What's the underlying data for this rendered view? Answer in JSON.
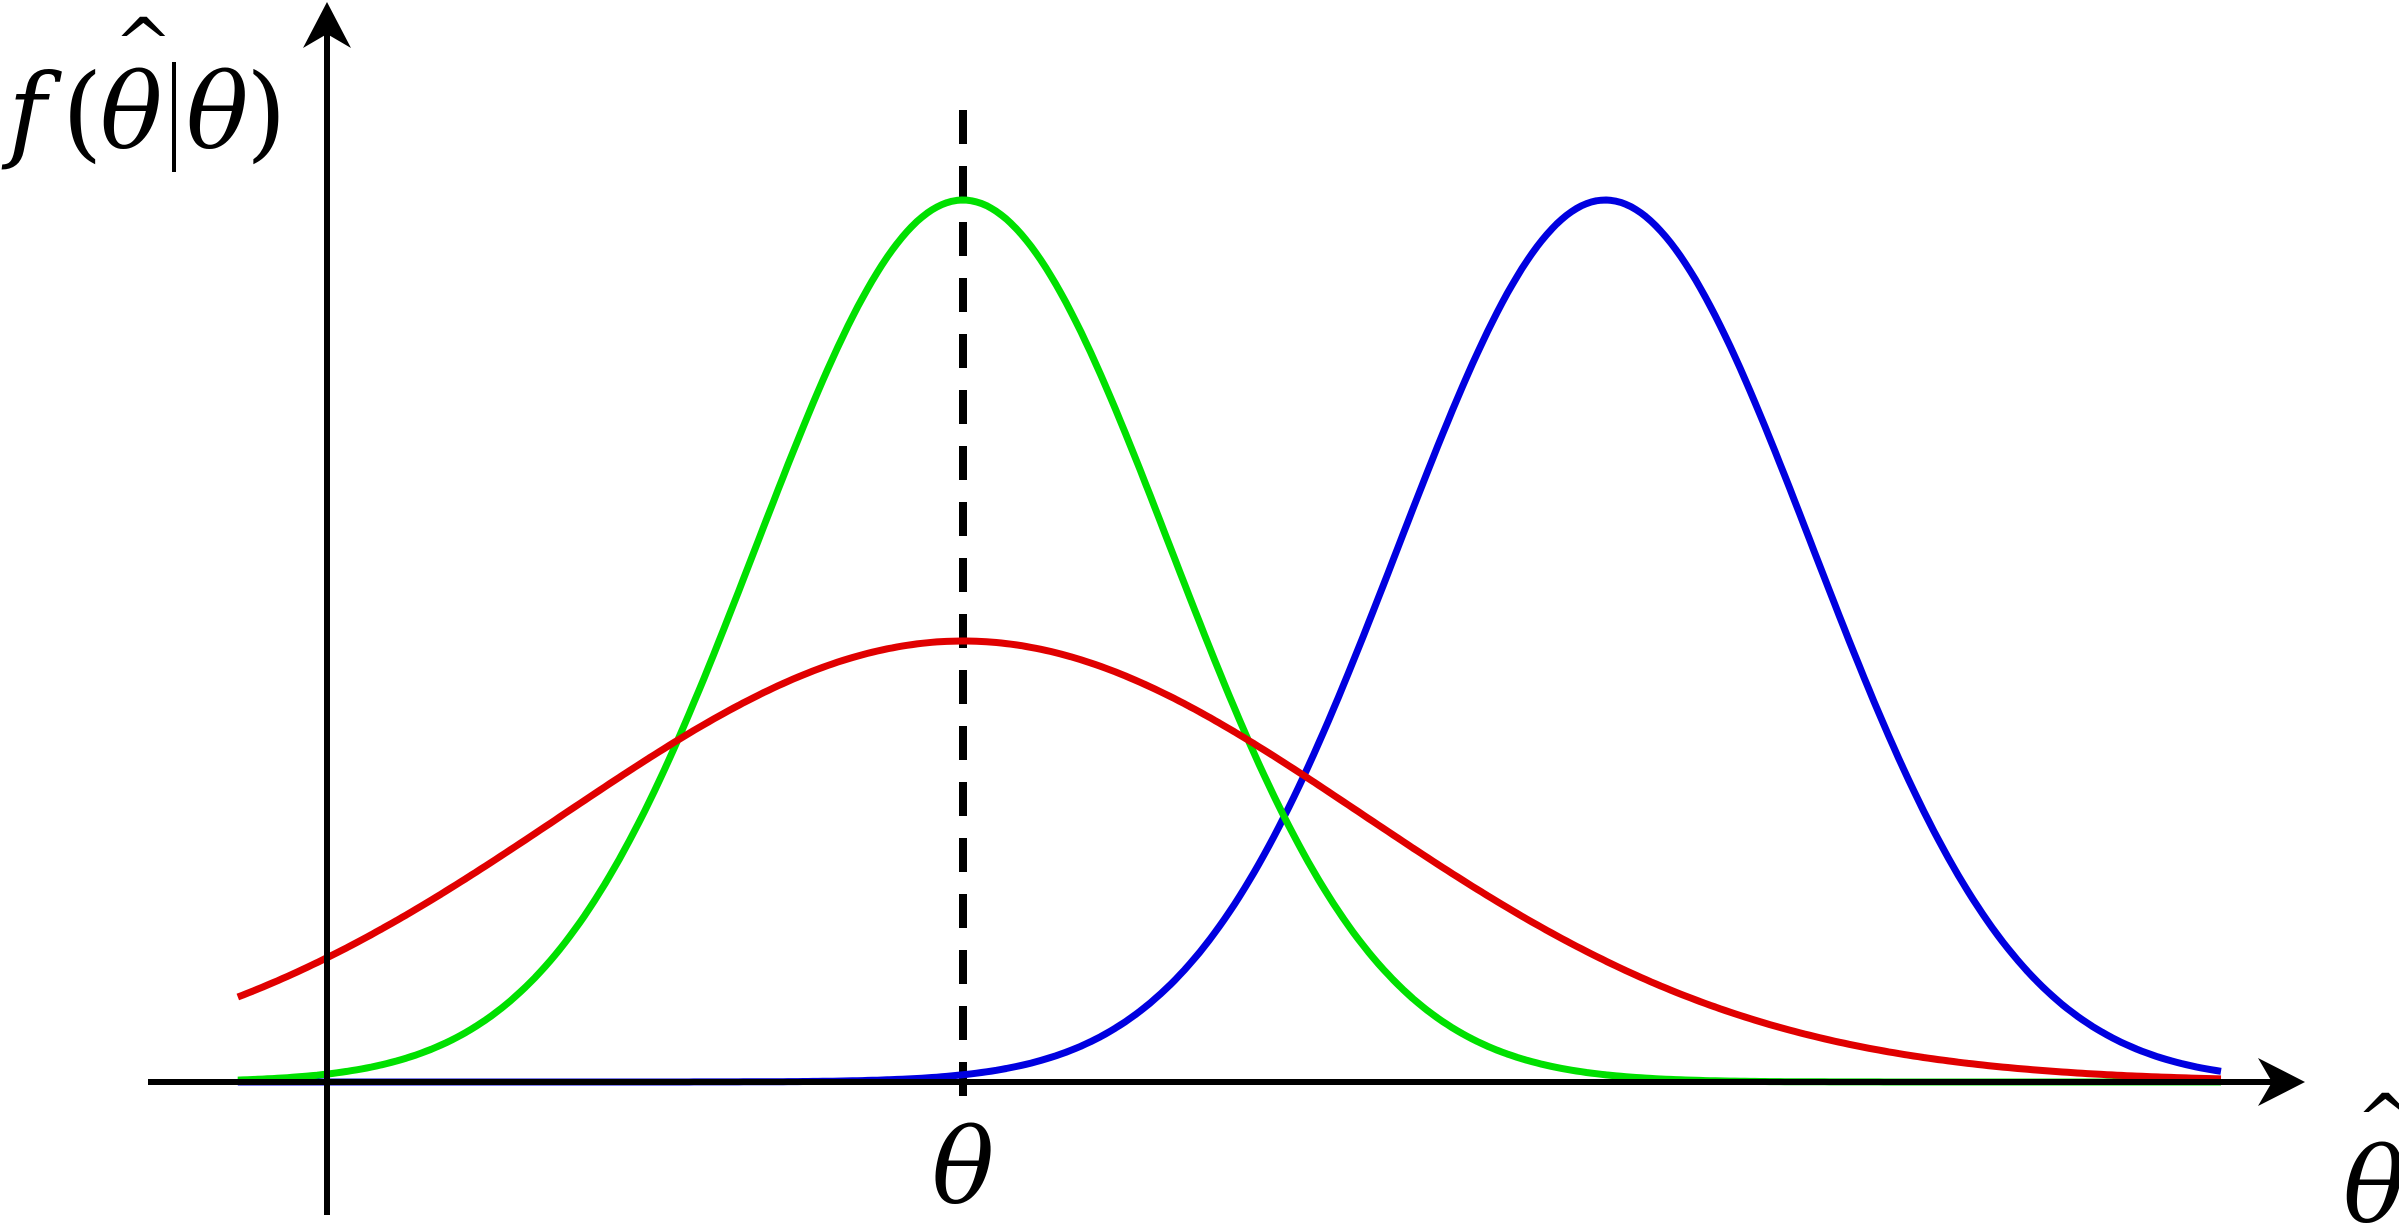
{
  "chart_data": {
    "type": "line",
    "title": "",
    "ylabel": "f(θ̂|θ)",
    "xlabel": "θ̂",
    "xticks": [
      {
        "value": 0,
        "label": "θ"
      }
    ],
    "xlim": [
      -3.0,
      5.1
    ],
    "ylim": [
      0,
      1.1
    ],
    "reference_line": {
      "x": 0,
      "style": "dashed"
    },
    "grid": false,
    "legend": "none",
    "series": [
      {
        "color": "#00e000",
        "distribution": "normal",
        "mean": 0.0,
        "sd": 0.7,
        "peak": 1.0,
        "x_range": [
          -2.45,
          4.25
        ]
      },
      {
        "color": "#0000e0",
        "distribution": "normal",
        "mean": 2.17,
        "sd": 0.7,
        "peak": 1.0,
        "x_range": [
          -2.45,
          4.25
        ]
      },
      {
        "color": "#e00000",
        "distribution": "normal",
        "mean": 0.0,
        "sd": 1.35,
        "peak": 0.5,
        "x_range": [
          -2.45,
          4.25
        ]
      }
    ]
  }
}
